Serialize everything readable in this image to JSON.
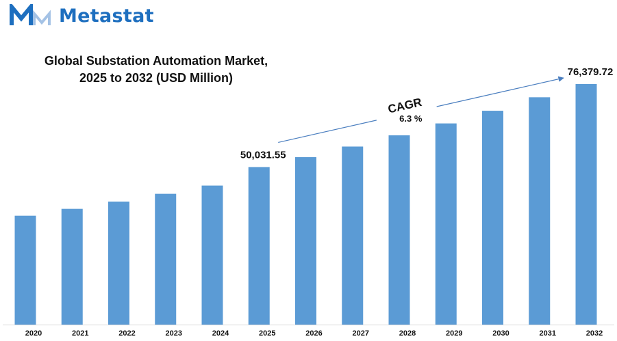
{
  "brand": {
    "name": "Metastat",
    "logo_icon": "metastat-m-logo-icon",
    "color": "#1e6fbf"
  },
  "chart_data": {
    "type": "bar",
    "title_lines": [
      "Global Substation Automation Market,",
      "2025 to 2032 (USD Million)"
    ],
    "categories": [
      "2020",
      "2021",
      "2022",
      "2023",
      "2024",
      "2025",
      "2026",
      "2027",
      "2028",
      "2029",
      "2030",
      "2031",
      "2032"
    ],
    "series": [
      {
        "values": [
          34573,
          36750,
          39066,
          41527,
          44143,
          50031.55,
          53183,
          56534,
          60095,
          63881,
          67906,
          72184,
          76379.72
        ]
      }
    ],
    "data_labels": [
      {
        "category": "2025",
        "text": "50,031.55"
      },
      {
        "category": "2032",
        "text": "76,379.72"
      }
    ],
    "annotation": {
      "label": "CAGR",
      "value": "6.3 %"
    },
    "bar_color": "#5b9bd5",
    "arrow_color": "#4a7ebf",
    "ylim": [
      0,
      76379.72
    ],
    "grid": false,
    "legend": "none",
    "xlabel": "",
    "ylabel": ""
  }
}
